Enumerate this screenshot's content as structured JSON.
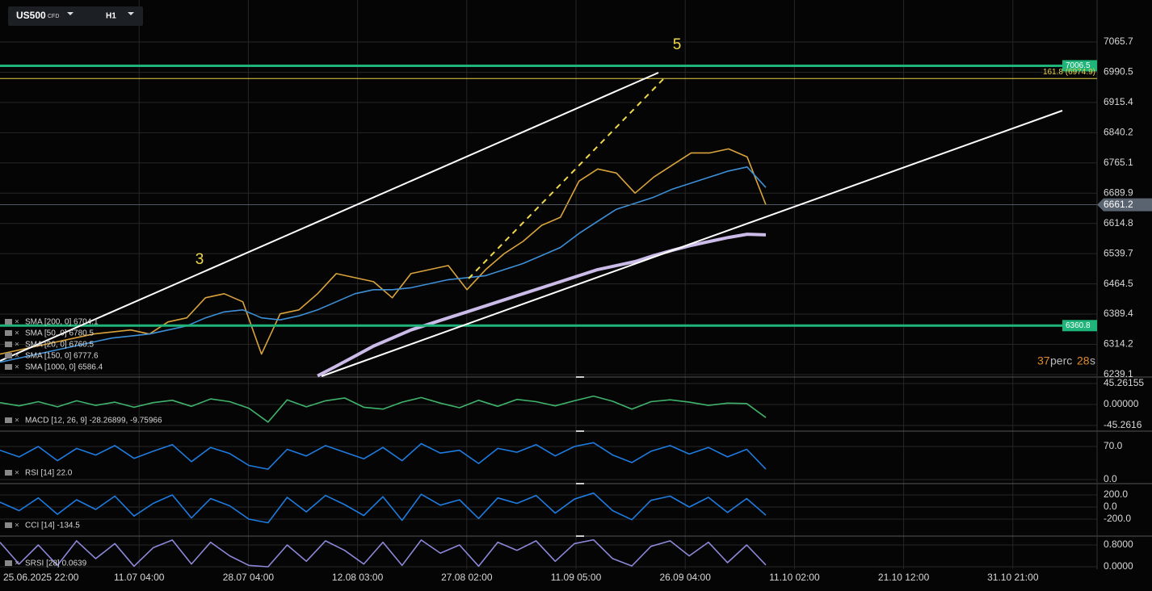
{
  "header": {
    "symbol": "US500",
    "symbol_tag": "CFD",
    "timeframe": "H1"
  },
  "wave_labels": [
    "3",
    "5"
  ],
  "timer": {
    "count": "37",
    "unit": "perc",
    "seconds": "28",
    "seconds_unit": "s"
  },
  "time_axis": {
    "labels": [
      "25.06.2025  22:00",
      "11.07 04:00",
      "28.07 04:00",
      "12.08 03:00",
      "27.08 02:00",
      "11.09 05:00",
      "26.09 04:00",
      "11.10 02:00",
      "21.10 12:00",
      "31.10 21:00"
    ]
  },
  "legend": [
    "SMA [200, 0] 6704.1",
    "SMA [50, 0] 6780.5",
    "SMA [20, 0] 6760.5",
    "SMA [150, 0] 6777.6",
    "SMA [1000, 0] 6586.4"
  ],
  "main_pane": {
    "ylim": [
      6235,
      7170
    ],
    "yticks": [
      7065.7,
      6990.5,
      6915.4,
      6840.2,
      6765.1,
      6689.9,
      6614.8,
      6539.7,
      6464.5,
      6389.4,
      6314.2,
      6239.1
    ],
    "levels": [
      {
        "value": 7006.5,
        "label": "7006.5",
        "color": "#1fb47a"
      },
      {
        "value": 6974.9,
        "label": "161.8 (6974.9)",
        "color": "#e8d24a"
      },
      {
        "value": 6661.2,
        "label": "6661.2",
        "color": "#5a6470"
      },
      {
        "value": 6360.8,
        "label": "6360.8",
        "color": "#1fb47a"
      }
    ],
    "series": [
      {
        "name": "US500",
        "color": "#d9a33c",
        "values": [
          6290,
          6300,
          6310,
          6320,
          6330,
          6340,
          6345,
          6350,
          6340,
          6370,
          6380,
          6430,
          6440,
          6420,
          6290,
          6390,
          6400,
          6440,
          6490,
          6480,
          6470,
          6430,
          6490,
          6500,
          6510,
          6450,
          6500,
          6540,
          6570,
          6610,
          6630,
          6720,
          6750,
          6740,
          6690,
          6730,
          6760,
          6790,
          6790,
          6800,
          6780,
          6661.2
        ]
      },
      {
        "name": "SMA [200, 0]",
        "color": "#3d8fd6",
        "values": [
          6270,
          6280,
          6290,
          6300,
          6310,
          6320,
          6330,
          6335,
          6340,
          6350,
          6360,
          6380,
          6395,
          6400,
          6380,
          6375,
          6385,
          6400,
          6420,
          6440,
          6450,
          6450,
          6455,
          6465,
          6475,
          6480,
          6485,
          6500,
          6515,
          6535,
          6555,
          6590,
          6620,
          6650,
          6665,
          6680,
          6700,
          6715,
          6730,
          6745,
          6755,
          6704.1
        ]
      },
      {
        "name": "SMA [1000, 0]",
        "color": "#cbbbe8",
        "values": [
          null,
          null,
          null,
          null,
          null,
          null,
          null,
          null,
          null,
          null,
          null,
          null,
          null,
          null,
          null,
          null,
          null,
          6236,
          6260,
          6285,
          6310,
          6330,
          6350,
          6365,
          6380,
          6395,
          6410,
          6425,
          6440,
          6455,
          6470,
          6485,
          6500,
          6510,
          6520,
          6535,
          6548,
          6560,
          6570,
          6580,
          6588,
          6586.4
        ]
      }
    ]
  },
  "indicators": [
    {
      "label": "MACD [12, 26, 9] -28.26899, -9.75966",
      "ylim": [
        -55.7,
        57.4
      ],
      "yticks": [
        45.26155,
        {
          "value": 0,
          "label": "0.00000"
        },
        -45.2616
      ],
      "series": [
        {
          "name": "MACD",
          "color": "#3fb36b",
          "values": [
            4,
            -3,
            6,
            -5,
            8,
            -2,
            5,
            -6,
            4,
            9,
            -4,
            12,
            6,
            -8,
            -38,
            10,
            -5,
            8,
            14,
            -6,
            -10,
            5,
            15,
            3,
            -7,
            9,
            -4,
            11,
            6,
            -3,
            8,
            18,
            7,
            -10,
            6,
            10,
            5,
            -2,
            3,
            2,
            -28.26899
          ]
        }
      ]
    },
    {
      "label": "RSI [14] 22.0",
      "ylim": [
        -6.8,
        100.8
      ],
      "yticks": [
        {
          "value": 70,
          "label": "70.0"
        },
        {
          "value": 0,
          "label": "0.0"
        }
      ],
      "series": [
        {
          "name": "RSI",
          "color": "#1e7be0",
          "values": [
            62,
            48,
            70,
            40,
            66,
            52,
            72,
            45,
            60,
            74,
            38,
            68,
            55,
            30,
            22,
            64,
            50,
            72,
            58,
            44,
            68,
            40,
            76,
            56,
            62,
            34,
            66,
            58,
            74,
            50,
            70,
            78,
            52,
            36,
            60,
            72,
            54,
            68,
            48,
            64,
            22
          ]
        }
      ]
    },
    {
      "label": "CCI [14] -134.5",
      "ylim": [
        -467,
        373
      ],
      "yticks": [
        {
          "value": 200,
          "label": "200.0"
        },
        {
          "value": 0,
          "label": "0.0"
        },
        {
          "value": -200,
          "label": "-200.0"
        }
      ],
      "series": [
        {
          "name": "CCI",
          "color": "#1e7be0",
          "values": [
            80,
            -60,
            150,
            -120,
            120,
            -40,
            180,
            -150,
            60,
            200,
            -180,
            140,
            20,
            -200,
            -260,
            160,
            -80,
            190,
            40,
            -140,
            170,
            -220,
            210,
            30,
            120,
            -190,
            150,
            60,
            190,
            -100,
            130,
            230,
            -60,
            -210,
            110,
            180,
            0,
            160,
            -90,
            140,
            -134.5
          ]
        }
      ]
    },
    {
      "label": "SRSI [28] 0.0639",
      "ylim": [
        -0.089,
        1.096
      ],
      "yticks": [
        {
          "value": 0.8,
          "label": "0.8000"
        },
        {
          "value": 0,
          "label": "0.0000"
        }
      ],
      "series": [
        {
          "name": "SRSI",
          "color": "#8c88d8",
          "values": [
            0.9,
            0.1,
            0.8,
            0.05,
            0.95,
            0.3,
            0.85,
            0.02,
            0.7,
            0.98,
            0.1,
            0.9,
            0.4,
            0.05,
            0.0,
            0.8,
            0.2,
            0.95,
            0.6,
            0.1,
            0.9,
            0.05,
            0.98,
            0.5,
            0.8,
            0.02,
            0.9,
            0.6,
            0.95,
            0.2,
            0.85,
            0.99,
            0.3,
            0.03,
            0.75,
            0.95,
            0.4,
            0.9,
            0.15,
            0.8,
            0.0639
          ]
        }
      ]
    }
  ]
}
